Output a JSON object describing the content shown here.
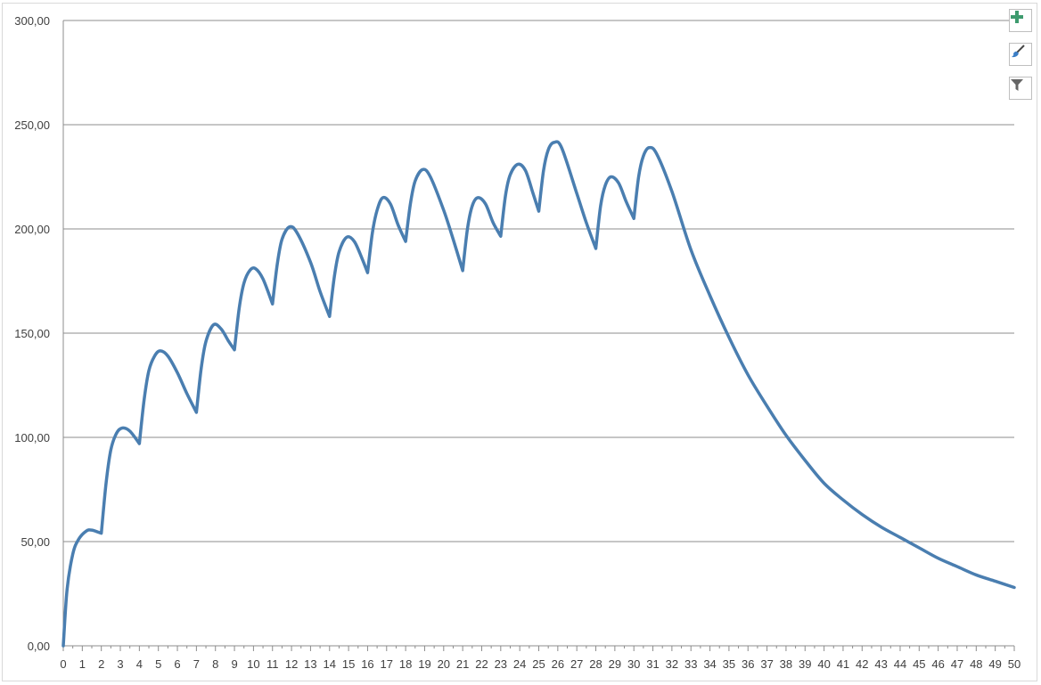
{
  "chart_data": {
    "type": "line",
    "title": "",
    "xlabel": "",
    "ylabel": "",
    "xlim": [
      0,
      50
    ],
    "ylim": [
      0,
      300
    ],
    "x_ticks": [
      "0",
      "1",
      "2",
      "3",
      "4",
      "5",
      "6",
      "7",
      "8",
      "9",
      "10",
      "11",
      "12",
      "13",
      "14",
      "15",
      "16",
      "17",
      "18",
      "19",
      "20",
      "21",
      "22",
      "23",
      "24",
      "25",
      "26",
      "27",
      "28",
      "29",
      "30",
      "31",
      "32",
      "33",
      "34",
      "35",
      "36",
      "37",
      "38",
      "39",
      "40",
      "41",
      "42",
      "43",
      "44",
      "45",
      "46",
      "47",
      "48",
      "49",
      "50"
    ],
    "y_ticks": [
      "0,00",
      "50,00",
      "100,00",
      "150,00",
      "200,00",
      "250,00",
      "300,00"
    ],
    "y_tick_values": [
      0,
      50,
      100,
      150,
      200,
      250,
      300
    ],
    "grid": "horizontal major",
    "legend": "none",
    "series": [
      {
        "color": "#4a7eb0",
        "points": [
          [
            0,
            0
          ],
          [
            0.2,
            27
          ],
          [
            0.5,
            44
          ],
          [
            0.8,
            51
          ],
          [
            1.2,
            55
          ],
          [
            1.5,
            55.5
          ],
          [
            2,
            54
          ],
          [
            2.25,
            78
          ],
          [
            2.5,
            94
          ],
          [
            2.8,
            102
          ],
          [
            3.1,
            104.5
          ],
          [
            3.5,
            103
          ],
          [
            4,
            97
          ],
          [
            4.25,
            118
          ],
          [
            4.5,
            132
          ],
          [
            4.8,
            139
          ],
          [
            5.1,
            141.5
          ],
          [
            5.5,
            139
          ],
          [
            6,
            131
          ],
          [
            6.5,
            121
          ],
          [
            7,
            112
          ],
          [
            7.25,
            133
          ],
          [
            7.5,
            146
          ],
          [
            7.9,
            154
          ],
          [
            8.3,
            152
          ],
          [
            8.7,
            146
          ],
          [
            9,
            142
          ],
          [
            9.25,
            162
          ],
          [
            9.5,
            174
          ],
          [
            9.8,
            180
          ],
          [
            10.1,
            181
          ],
          [
            10.5,
            176
          ],
          [
            11,
            164
          ],
          [
            11.25,
            183
          ],
          [
            11.5,
            195
          ],
          [
            11.9,
            201
          ],
          [
            12.3,
            198
          ],
          [
            13,
            184
          ],
          [
            13.5,
            170
          ],
          [
            14,
            158
          ],
          [
            14.25,
            177
          ],
          [
            14.5,
            189
          ],
          [
            14.9,
            196
          ],
          [
            15.3,
            194
          ],
          [
            15.7,
            186
          ],
          [
            16,
            179
          ],
          [
            16.25,
            198
          ],
          [
            16.5,
            209
          ],
          [
            16.8,
            215
          ],
          [
            17.2,
            212
          ],
          [
            17.6,
            202
          ],
          [
            18,
            194
          ],
          [
            18.25,
            212
          ],
          [
            18.5,
            223
          ],
          [
            18.9,
            228.5
          ],
          [
            19.3,
            225
          ],
          [
            20,
            209
          ],
          [
            20.5,
            195
          ],
          [
            21,
            180
          ],
          [
            21.25,
            200
          ],
          [
            21.5,
            211
          ],
          [
            21.8,
            215
          ],
          [
            22.2,
            212
          ],
          [
            22.6,
            203
          ],
          [
            23,
            196.5
          ],
          [
            23.25,
            216
          ],
          [
            23.5,
            226
          ],
          [
            23.9,
            231
          ],
          [
            24.3,
            228
          ],
          [
            24.7,
            217
          ],
          [
            25,
            208.5
          ],
          [
            25.25,
            228
          ],
          [
            25.5,
            238
          ],
          [
            25.8,
            241.5
          ],
          [
            26.2,
            239
          ],
          [
            27,
            217
          ],
          [
            27.5,
            203
          ],
          [
            28,
            190.6
          ],
          [
            28.25,
            211
          ],
          [
            28.5,
            221
          ],
          [
            28.8,
            225
          ],
          [
            29.2,
            222
          ],
          [
            29.6,
            213
          ],
          [
            30,
            205
          ],
          [
            30.25,
            225
          ],
          [
            30.5,
            235
          ],
          [
            30.8,
            239
          ],
          [
            31.2,
            236
          ],
          [
            32,
            218
          ],
          [
            33,
            190
          ],
          [
            34,
            168
          ],
          [
            35,
            148
          ],
          [
            36,
            130
          ],
          [
            37,
            115
          ],
          [
            38,
            101
          ],
          [
            39,
            89
          ],
          [
            40,
            78
          ],
          [
            41,
            70
          ],
          [
            42,
            63
          ],
          [
            43,
            57
          ],
          [
            44,
            52
          ],
          [
            45,
            47
          ],
          [
            46,
            42
          ],
          [
            47,
            38
          ],
          [
            48,
            34
          ],
          [
            49,
            31
          ],
          [
            50,
            28
          ]
        ]
      }
    ]
  },
  "colors": {
    "line": "#4a7eb0",
    "grid": "#8c8c8c",
    "axis": "#8c8c8c",
    "plus_icon": "#3e9b6e"
  },
  "toolbar": {
    "icons": [
      "plus-icon",
      "brush-icon",
      "filter-icon"
    ]
  }
}
